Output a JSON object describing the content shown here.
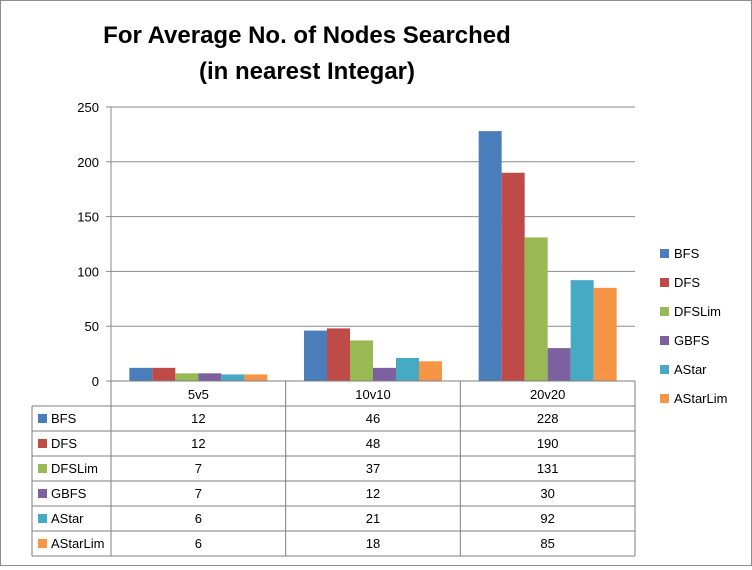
{
  "chart_data": {
    "type": "bar",
    "title_lines": [
      "For Average No. of Nodes Searched",
      "(in nearest Integar)"
    ],
    "categories": [
      "5v5",
      "10v10",
      "20v20"
    ],
    "series": [
      {
        "name": "BFS",
        "color": "#4a7ebb",
        "values": [
          12,
          46,
          228
        ]
      },
      {
        "name": "DFS",
        "color": "#be4b48",
        "values": [
          12,
          48,
          190
        ]
      },
      {
        "name": "DFSLim",
        "color": "#98b954",
        "values": [
          7,
          37,
          131
        ]
      },
      {
        "name": "GBFS",
        "color": "#7d60a0",
        "values": [
          7,
          12,
          30
        ]
      },
      {
        "name": "AStar",
        "color": "#46aac5",
        "values": [
          6,
          21,
          92
        ]
      },
      {
        "name": "AStarLim",
        "color": "#f69546",
        "values": [
          6,
          18,
          85
        ]
      }
    ],
    "ylim": [
      0,
      250
    ],
    "yticks": [
      0,
      50,
      100,
      150,
      200,
      250
    ],
    "grid": true,
    "legend_position": "right",
    "data_table": true
  }
}
